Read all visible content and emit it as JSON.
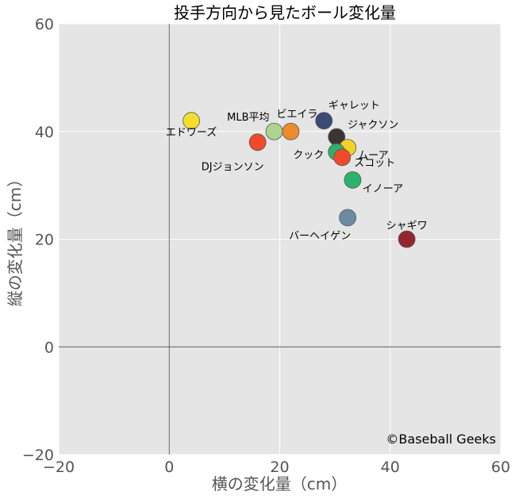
{
  "chart_data": {
    "type": "scatter",
    "title": "投手方向から見たボール変化量",
    "xlabel": "横の変化量（cm）",
    "ylabel": "縦の変化量（cm）",
    "xlim": [
      -20,
      60
    ],
    "ylim": [
      -20,
      60
    ],
    "xticks": [
      -20,
      0,
      20,
      40,
      60
    ],
    "yticks": [
      -20,
      0,
      20,
      40,
      60
    ],
    "grid": true,
    "background": "#e5e5e5",
    "grid_color": "#ffffff",
    "zero_lines": true,
    "credit": "©Baseball Geeks",
    "points": [
      {
        "label": "エドワーズ",
        "x": 4,
        "y": 42,
        "color": "#f5dd2b"
      },
      {
        "label": "DJジョンソン",
        "x": 16,
        "y": 38,
        "color": "#f04a2a"
      },
      {
        "label": "MLB平均",
        "x": 19,
        "y": 40,
        "color": "#acd490"
      },
      {
        "label": "ビエイラ",
        "x": 22,
        "y": 40,
        "color": "#f08a2e"
      },
      {
        "label": "ギャレット",
        "x": 28,
        "y": 42,
        "color": "#3b4a77"
      },
      {
        "label": "ジャクソン",
        "x": 30.3,
        "y": 39,
        "color": "#3c3633"
      },
      {
        "label": "ムーア",
        "x": 32.3,
        "y": 37,
        "color": "#f3d228"
      },
      {
        "label": "クック",
        "x": 30.3,
        "y": 36.2,
        "color": "#2bb26c"
      },
      {
        "label": "スコット",
        "x": 31.3,
        "y": 35.2,
        "color": "#f04a2a"
      },
      {
        "label": "イノーア",
        "x": 33.2,
        "y": 31,
        "color": "#2bb26c"
      },
      {
        "label": "バーヘイゲン",
        "x": 32.3,
        "y": 24,
        "color": "#6a8ba2"
      },
      {
        "label": "シャギワ",
        "x": 43,
        "y": 20,
        "color": "#932630"
      }
    ]
  }
}
